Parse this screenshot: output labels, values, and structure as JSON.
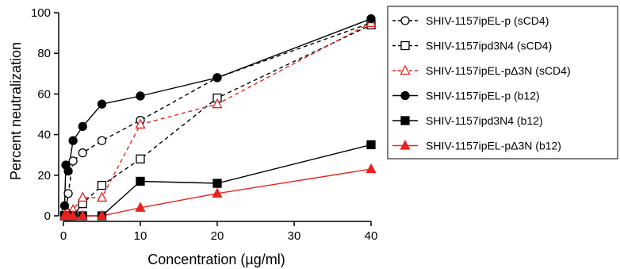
{
  "chart_data": {
    "type": "line",
    "title": "",
    "xlabel": "Concentration (µg/ml)",
    "ylabel": "Percent neutralization",
    "xlim": [
      0,
      40
    ],
    "ylim": [
      0,
      100
    ],
    "x_ticks": [
      0,
      10,
      20,
      30,
      40
    ],
    "y_ticks": [
      0,
      20,
      40,
      60,
      80,
      100
    ],
    "x_tick_labels": [
      "0",
      "10",
      "20",
      "30",
      "40"
    ],
    "y_tick_labels": [
      "0",
      "20",
      "40",
      "60",
      "80",
      "100"
    ],
    "grid": false,
    "legend_position": "right",
    "series": [
      {
        "name": "SHIV-1157ipEL-p (sCD4)",
        "color": "#000000",
        "marker": "circle-open",
        "line": "dashed",
        "x": [
          0.156,
          0.313,
          0.625,
          1.25,
          2.5,
          5,
          10,
          20,
          40
        ],
        "y": [
          0,
          2,
          11,
          27,
          31,
          37,
          47,
          68,
          95
        ]
      },
      {
        "name": "SHIV-1157ipd3N4 (sCD4)",
        "color": "#000000",
        "marker": "square-open",
        "line": "dashed",
        "x": [
          0.156,
          0.313,
          0.625,
          1.25,
          2.5,
          5,
          10,
          20,
          40
        ],
        "y": [
          0,
          0,
          0,
          0,
          6,
          15,
          28,
          58,
          94
        ]
      },
      {
        "name": "SHIV-1157ipEL-pΔ3N (sCD4)",
        "color": "#e8231f",
        "marker": "triangle-open",
        "line": "dashed",
        "x": [
          0.156,
          0.313,
          0.625,
          1.25,
          2.5,
          5,
          10,
          20,
          40
        ],
        "y": [
          0,
          0,
          0,
          3,
          9,
          9,
          45,
          55,
          95
        ]
      },
      {
        "name": "SHIV-1157ipEL-p (b12)",
        "color": "#000000",
        "marker": "circle-filled",
        "line": "solid",
        "x": [
          0.156,
          0.313,
          0.625,
          1.25,
          2.5,
          5,
          10,
          20,
          40
        ],
        "y": [
          5,
          25,
          22,
          37,
          44,
          55,
          59,
          68,
          97
        ]
      },
      {
        "name": "SHIV-1157ipd3N4 (b12)",
        "color": "#000000",
        "marker": "square-filled",
        "line": "solid",
        "x": [
          0.156,
          0.313,
          0.625,
          1.25,
          2.5,
          5,
          10,
          20,
          40
        ],
        "y": [
          0,
          0,
          0,
          0,
          0,
          0,
          17,
          16,
          35
        ]
      },
      {
        "name": "SHIV-1157ipEL-pΔ3N (b12)",
        "color": "#e8231f",
        "marker": "triangle-filled",
        "line": "solid",
        "x": [
          0.156,
          0.313,
          0.625,
          1.25,
          2.5,
          5,
          10,
          20,
          40
        ],
        "y": [
          0,
          0,
          0,
          0,
          0,
          0,
          4,
          11,
          23
        ]
      }
    ]
  }
}
